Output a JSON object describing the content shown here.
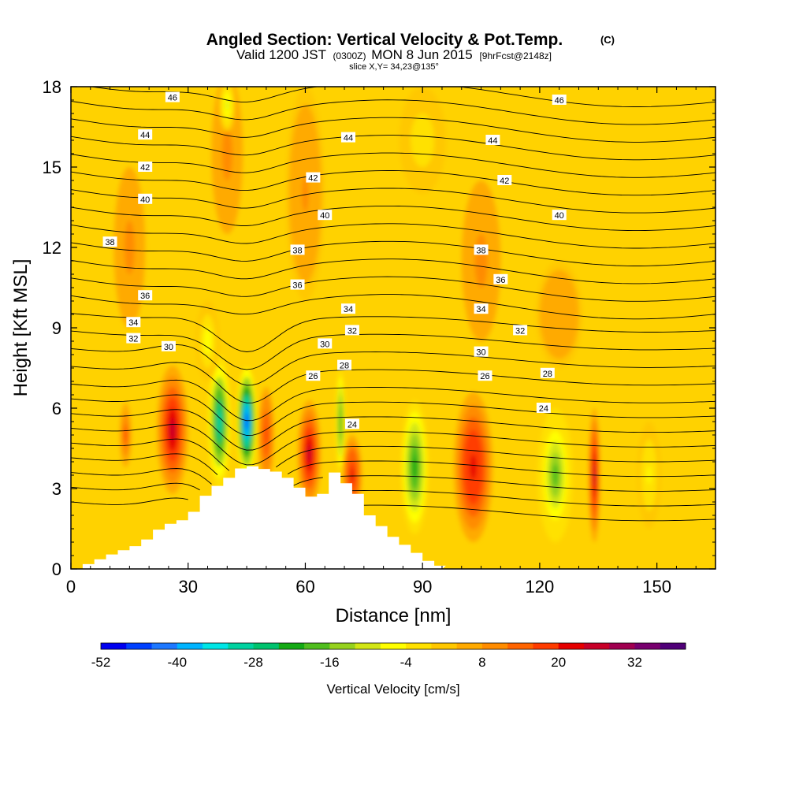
{
  "chart_data": {
    "type": "heatmap",
    "title": "Angled Section: Vertical Velocity & Pot.Temp.",
    "title_mark": "(C)",
    "subtitle_parts": [
      "Valid 1200 JST",
      "(0300Z)",
      "MON 8 Jun 2015",
      "[9hrFcst@2148z]"
    ],
    "slice_label": "slice X,Y= 34,23@135°",
    "xlabel": "Distance [nm]",
    "ylabel": "Height [Kft MSL]",
    "xlim": [
      0,
      165
    ],
    "ylim": [
      0,
      18
    ],
    "x_ticks": [
      "0",
      "30",
      "60",
      "90",
      "120",
      "150"
    ],
    "y_ticks": [
      "0",
      "3",
      "6",
      "9",
      "12",
      "15",
      "18"
    ],
    "colorbar": {
      "label": "Vertical Velocity [cm/s]",
      "tick_labels": [
        "-52",
        "-40",
        "-28",
        "-16",
        "-4",
        "8",
        "20",
        "32"
      ],
      "colors": [
        "#0000f0",
        "#0040ff",
        "#1e78ff",
        "#00b4ff",
        "#00e6e6",
        "#00d2a0",
        "#00c36e",
        "#14aa14",
        "#50be1e",
        "#96d21e",
        "#d2e614",
        "#ffff00",
        "#ffe100",
        "#ffc800",
        "#ffaa00",
        "#ff8c00",
        "#ff6400",
        "#ff3c00",
        "#e60000",
        "#c80028",
        "#a00050",
        "#78006e",
        "#500078"
      ]
    },
    "base_field_cm_s": 3,
    "cells": [
      {
        "x": 26,
        "y": 5.2,
        "rx": 4,
        "ry": 2.4,
        "v": 27
      },
      {
        "x": 14,
        "y": 5.0,
        "rx": 1.5,
        "ry": 1.2,
        "v": 16
      },
      {
        "x": 38,
        "y": 5.5,
        "rx": 3,
        "ry": 2.5,
        "v": -30
      },
      {
        "x": 45,
        "y": 5.5,
        "rx": 2.5,
        "ry": 2,
        "v": -48
      },
      {
        "x": 50,
        "y": 5.0,
        "rx": 2,
        "ry": 1.8,
        "v": 18
      },
      {
        "x": 61,
        "y": 4.3,
        "rx": 3,
        "ry": 2,
        "v": 24
      },
      {
        "x": 69,
        "y": 5.5,
        "rx": 1.2,
        "ry": 2,
        "v": -20
      },
      {
        "x": 72,
        "y": 3.5,
        "rx": 2.5,
        "ry": 1.5,
        "v": 22
      },
      {
        "x": 88,
        "y": 3.8,
        "rx": 3.5,
        "ry": 2.5,
        "v": -22
      },
      {
        "x": 103,
        "y": 3.8,
        "rx": 5,
        "ry": 2.8,
        "v": 23
      },
      {
        "x": 124,
        "y": 3.5,
        "rx": 4.5,
        "ry": 2.5,
        "v": -17
      },
      {
        "x": 134,
        "y": 3.5,
        "rx": 1.5,
        "ry": 2.5,
        "v": 26
      },
      {
        "x": 148,
        "y": 3.5,
        "rx": 3,
        "ry": 2,
        "v": -5
      },
      {
        "x": 40,
        "y": 15.5,
        "rx": 4,
        "ry": 3,
        "v": 9
      },
      {
        "x": 60,
        "y": 14,
        "rx": 5,
        "ry": 4,
        "v": 8
      },
      {
        "x": 15,
        "y": 12,
        "rx": 4,
        "ry": 3,
        "v": 10
      },
      {
        "x": 105,
        "y": 11.5,
        "rx": 5,
        "ry": 3,
        "v": 9
      },
      {
        "x": 125,
        "y": 9.5,
        "rx": 6,
        "ry": 2,
        "v": 7
      },
      {
        "x": 35,
        "y": 8.5,
        "rx": 3,
        "ry": 1.5,
        "v": -6
      },
      {
        "x": 40,
        "y": 17.3,
        "rx": 2,
        "ry": 1,
        "v": -10
      },
      {
        "x": 90,
        "y": 16,
        "rx": 6,
        "ry": 2,
        "v": -3
      }
    ],
    "isotherm_labels": [
      {
        "text": "46",
        "x": 26,
        "y": 17.6
      },
      {
        "text": "46",
        "x": 125,
        "y": 17.5
      },
      {
        "text": "44",
        "x": 19,
        "y": 16.2
      },
      {
        "text": "44",
        "x": 71,
        "y": 16.1
      },
      {
        "text": "44",
        "x": 108,
        "y": 16.0
      },
      {
        "text": "42",
        "x": 19,
        "y": 15.0
      },
      {
        "text": "42",
        "x": 62,
        "y": 14.6
      },
      {
        "text": "42",
        "x": 111,
        "y": 14.5
      },
      {
        "text": "40",
        "x": 19,
        "y": 13.8
      },
      {
        "text": "40",
        "x": 65,
        "y": 13.2
      },
      {
        "text": "40",
        "x": 125,
        "y": 13.2
      },
      {
        "text": "38",
        "x": 10,
        "y": 12.2
      },
      {
        "text": "38",
        "x": 58,
        "y": 11.9
      },
      {
        "text": "38",
        "x": 105,
        "y": 11.9
      },
      {
        "text": "36",
        "x": 19,
        "y": 10.2
      },
      {
        "text": "36",
        "x": 58,
        "y": 10.6
      },
      {
        "text": "36",
        "x": 110,
        "y": 10.8
      },
      {
        "text": "34",
        "x": 16,
        "y": 9.2
      },
      {
        "text": "34",
        "x": 71,
        "y": 9.7
      },
      {
        "text": "34",
        "x": 105,
        "y": 9.7
      },
      {
        "text": "32",
        "x": 16,
        "y": 8.6
      },
      {
        "text": "32",
        "x": 72,
        "y": 8.9
      },
      {
        "text": "32",
        "x": 115,
        "y": 8.9
      },
      {
        "text": "30",
        "x": 25,
        "y": 8.3
      },
      {
        "text": "30",
        "x": 65,
        "y": 8.4
      },
      {
        "text": "30",
        "x": 105,
        "y": 8.1
      },
      {
        "text": "28",
        "x": 70,
        "y": 7.6
      },
      {
        "text": "28",
        "x": 122,
        "y": 7.3
      },
      {
        "text": "26",
        "x": 62,
        "y": 7.2
      },
      {
        "text": "26",
        "x": 106,
        "y": 7.2
      },
      {
        "text": "24",
        "x": 72,
        "y": 5.4
      },
      {
        "text": "24",
        "x": 121,
        "y": 6.0
      }
    ],
    "terrain_profile_kft": [
      {
        "x": 0,
        "h": 0
      },
      {
        "x": 10,
        "h": 0.6
      },
      {
        "x": 16,
        "h": 0.9
      },
      {
        "x": 19,
        "h": 1.2
      },
      {
        "x": 22,
        "h": 1.6
      },
      {
        "x": 29,
        "h": 1.9
      },
      {
        "x": 32,
        "h": 2.6
      },
      {
        "x": 35,
        "h": 3.0
      },
      {
        "x": 38,
        "h": 3.3
      },
      {
        "x": 41,
        "h": 3.6
      },
      {
        "x": 43,
        "h": 3.9
      },
      {
        "x": 52,
        "h": 3.6
      },
      {
        "x": 55,
        "h": 3.3
      },
      {
        "x": 58,
        "h": 2.9
      },
      {
        "x": 61,
        "h": 2.6
      },
      {
        "x": 64,
        "h": 2.9
      },
      {
        "x": 66,
        "h": 3.6
      },
      {
        "x": 72,
        "h": 2.8
      },
      {
        "x": 75,
        "h": 2.0
      },
      {
        "x": 78,
        "h": 1.6
      },
      {
        "x": 81,
        "h": 1.2
      },
      {
        "x": 84,
        "h": 0.9
      },
      {
        "x": 87,
        "h": 0.6
      },
      {
        "x": 90,
        "h": 0.3
      },
      {
        "x": 95,
        "h": 0
      }
    ]
  }
}
